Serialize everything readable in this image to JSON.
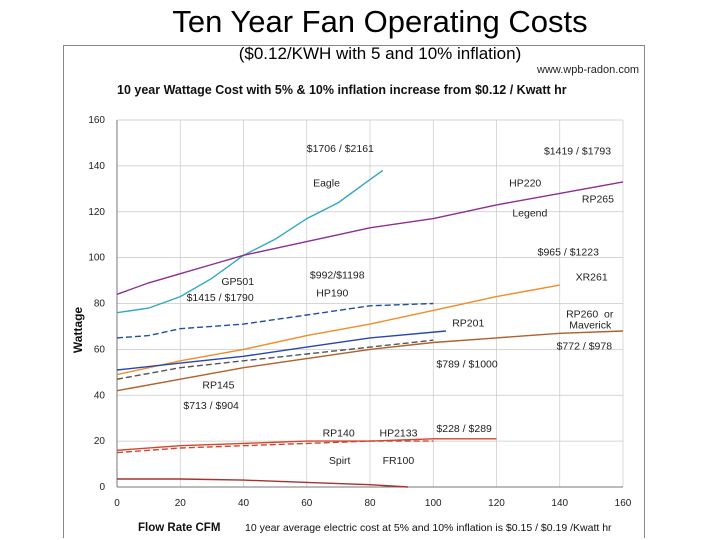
{
  "slide": {
    "title": "Ten Year Fan Operating Costs",
    "subtitle": "($0.12/KWH with 5 and 10% inflation)"
  },
  "chart_data": {
    "type": "line",
    "title": "10 year Wattage Cost with 5% & 10% inflation increase from $0.12 / Kwatt hr",
    "source": "www.wpb-radon.com",
    "xlabel": "Flow Rate CFM",
    "ylabel": "Wattage",
    "footer": "10 year average electric cost at 5% and 10% inflation is $0.15 / $0.19 /Kwatt hr",
    "xlim": [
      0,
      160
    ],
    "ylim": [
      0,
      160
    ],
    "xticks": [
      0,
      20,
      40,
      60,
      80,
      100,
      120,
      140,
      160
    ],
    "yticks": [
      0,
      20,
      40,
      60,
      80,
      100,
      120,
      140,
      160
    ],
    "grid": true,
    "series": [
      {
        "name": "Eagle",
        "color": "#2fa7c4",
        "dash": false,
        "x": [
          0,
          10,
          20,
          30,
          40,
          50,
          60,
          70,
          80,
          84
        ],
        "y": [
          76,
          78,
          83,
          91,
          101,
          108,
          117,
          124,
          134,
          138
        ]
      },
      {
        "name": "HP220",
        "color": "#8e2e95",
        "dash": false,
        "x": [
          0,
          10,
          20,
          30,
          40,
          50,
          60,
          80,
          100,
          120,
          140,
          160
        ],
        "y": [
          84,
          89,
          93,
          97,
          101,
          104,
          107,
          113,
          117,
          123,
          128,
          133
        ]
      },
      {
        "name": "GP501",
        "color": "#1f4fa3",
        "dash": true,
        "x": [
          0,
          10,
          20,
          40,
          60,
          80,
          100
        ],
        "y": [
          65,
          66,
          69,
          71,
          75,
          79,
          80
        ]
      },
      {
        "name": "XR261",
        "color": "#f28c28",
        "dash": false,
        "x": [
          0,
          20,
          40,
          60,
          80,
          100,
          120,
          140
        ],
        "y": [
          49,
          55,
          60,
          66,
          71,
          77,
          83,
          88
        ]
      },
      {
        "name": "RP201",
        "color": "#2746b0",
        "dash": false,
        "x": [
          0,
          20,
          40,
          60,
          80,
          104
        ],
        "y": [
          51,
          54,
          57,
          61,
          65,
          68
        ]
      },
      {
        "name": "HP190",
        "color": "#555555",
        "dash": true,
        "x": [
          0,
          20,
          40,
          60,
          80,
          100
        ],
        "y": [
          47,
          52,
          55,
          58,
          61,
          64
        ]
      },
      {
        "name": "RP260",
        "color": "#b0602a",
        "dash": false,
        "x": [
          0,
          20,
          40,
          60,
          80,
          100,
          120,
          140,
          160
        ],
        "y": [
          42,
          47,
          52,
          56,
          60,
          63,
          65,
          67,
          68
        ]
      },
      {
        "name": "RP140",
        "color": "#d2452e",
        "dash": true,
        "x": [
          0,
          20,
          40,
          60,
          80,
          100
        ],
        "y": [
          15,
          17,
          18,
          19,
          20,
          20
        ]
      },
      {
        "name": "HP2133",
        "color": "#d2452e",
        "dash": false,
        "x": [
          0,
          20,
          40,
          60,
          80,
          100,
          120
        ],
        "y": [
          16,
          18,
          19,
          20,
          20,
          21,
          21
        ]
      },
      {
        "name": "Spirit",
        "color": "#a83030",
        "dash": false,
        "x": [
          0,
          20,
          40,
          60,
          80,
          92
        ],
        "y": [
          3.5,
          3.5,
          3,
          2,
          1,
          0
        ]
      }
    ],
    "annotations": [
      {
        "text": "$1706 / $2161",
        "x": 60,
        "y": 146
      },
      {
        "text": "$1419 / $1793",
        "x": 135,
        "y": 145
      },
      {
        "text": "Eagle",
        "x": 62,
        "y": 131
      },
      {
        "text": "HP220",
        "x": 124,
        "y": 131
      },
      {
        "text": "RP265",
        "x": 147,
        "y": 124
      },
      {
        "text": "Legend",
        "x": 125,
        "y": 118
      },
      {
        "text": "$965 / $1223",
        "x": 133,
        "y": 101
      },
      {
        "text": "GP501",
        "x": 33,
        "y": 88
      },
      {
        "text": "$992/$1198",
        "x": 61,
        "y": 91
      },
      {
        "text": "XR261",
        "x": 145,
        "y": 90
      },
      {
        "text": "HP190",
        "x": 63,
        "y": 83
      },
      {
        "text": "$1415 / $1790",
        "x": 22,
        "y": 81
      },
      {
        "text": "RP201",
        "x": 106,
        "y": 70
      },
      {
        "text": "RP260",
        "x": 142,
        "y": 74
      },
      {
        "text": "or",
        "x": 154,
        "y": 74
      },
      {
        "text": "Maverick",
        "x": 143,
        "y": 69
      },
      {
        "text": "$772 / $978",
        "x": 139,
        "y": 60
      },
      {
        "text": "$789 / $1000",
        "x": 101,
        "y": 52
      },
      {
        "text": "RP145",
        "x": 27,
        "y": 43
      },
      {
        "text": "$713 / $904",
        "x": 21,
        "y": 34
      },
      {
        "text": "$228 / $289",
        "x": 101,
        "y": 24
      },
      {
        "text": "RP140",
        "x": 65,
        "y": 22
      },
      {
        "text": "HP2133",
        "x": 83,
        "y": 22
      },
      {
        "text": "Spirt",
        "x": 67,
        "y": 10
      },
      {
        "text": "FR100",
        "x": 84,
        "y": 10
      }
    ]
  }
}
